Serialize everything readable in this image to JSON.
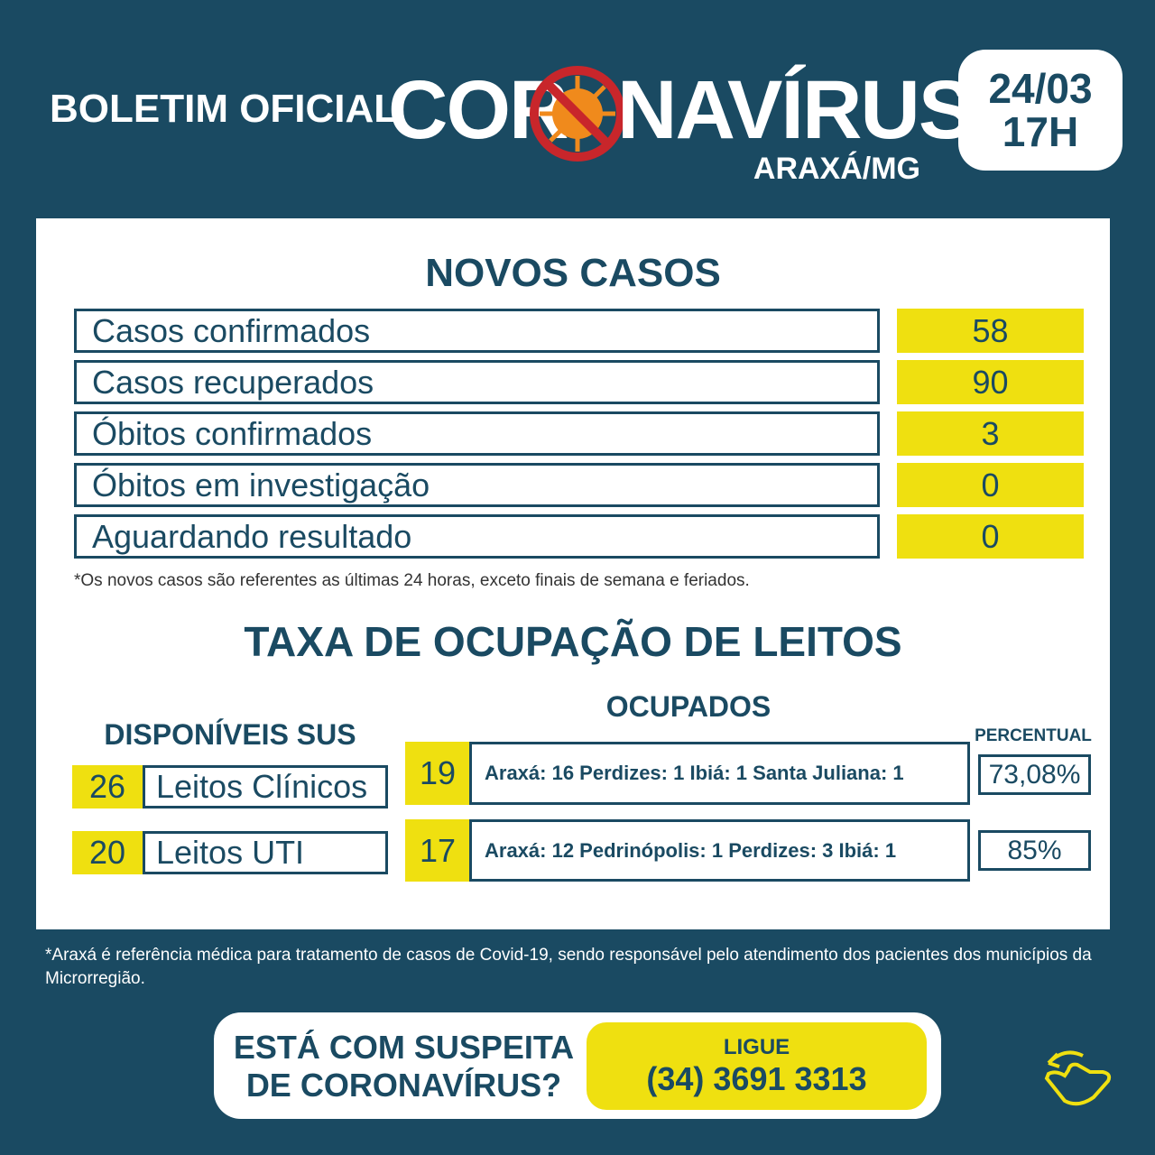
{
  "header": {
    "pre_title": "BOLETIM OFICIAL",
    "title_left": "COR",
    "title_right": "NAVÍRUS",
    "location": "ARAXÁ/MG",
    "date": "24/03",
    "time": "17H"
  },
  "new_cases": {
    "title": "NOVOS CASOS",
    "rows": [
      {
        "label": "Casos confirmados",
        "value": "58"
      },
      {
        "label": "Casos recuperados",
        "value": "90"
      },
      {
        "label": "Óbitos confirmados",
        "value": "3"
      },
      {
        "label": "Óbitos em investigação",
        "value": "0"
      },
      {
        "label": "Aguardando resultado",
        "value": "0"
      }
    ],
    "footnote": "*Os novos casos são referentes as últimas 24 horas, exceto finais de semana e feriados."
  },
  "beds": {
    "title": "TAXA DE OCUPAÇÃO DE LEITOS",
    "available_title": "DISPONÍVEIS SUS",
    "occupied_title": "OCUPADOS",
    "percent_title": "PERCENTUAL",
    "rows": [
      {
        "available": "26",
        "type": "Leitos Clínicos",
        "occupied": "19",
        "breakdown": "Araxá: 16 Perdizes: 1 Ibiá: 1 Santa Juliana: 1",
        "percent": "73,08%"
      },
      {
        "available": "20",
        "type": "Leitos UTI",
        "occupied": "17",
        "breakdown": "Araxá: 12 Pedrinópolis: 1 Perdizes: 3 Ibiá: 1",
        "percent": "85%"
      }
    ]
  },
  "footnote": "*Araxá é referência médica para tratamento de casos de Covid-19, sendo responsável pelo atendimento dos pacientes dos municípios da Microrregião.",
  "cta": {
    "question_line1": "ESTÁ COM SUSPEITA",
    "question_line2": "DE CORONAVÍRUS?",
    "call": "LIGUE",
    "phone": "(34) 3691 3313"
  }
}
